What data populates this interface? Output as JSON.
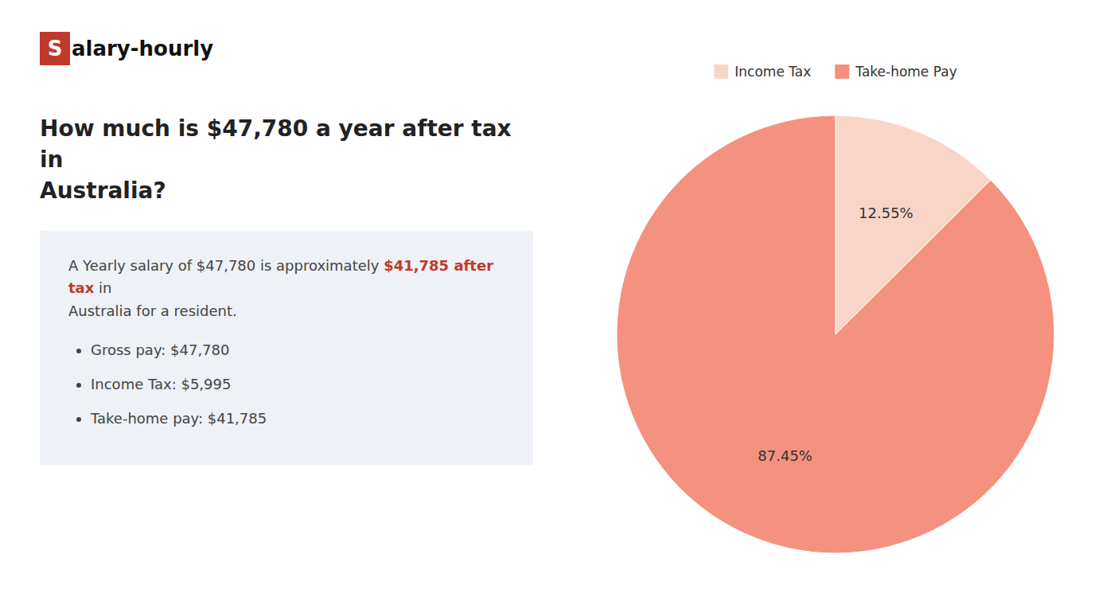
{
  "chart_data": {
    "type": "pie",
    "title": "How much is $47,780 a year after tax in\nAustralia?",
    "categories": [
      "Income Tax",
      "Take-home Pay"
    ],
    "values": [
      12.55,
      87.45
    ],
    "value_labels": [
      "12.55%",
      "87.45%"
    ],
    "colors": [
      "#f9d5c8",
      "#f4917f"
    ],
    "data_labels": true,
    "legend": "upper center",
    "annotations": [
      {
        "text": "S",
        "color": "#c0392b"
      },
      {
        "text": "alary-hourly"
      },
      {
        "text": "A Yearly salary of $47,780 is approximately "
      },
      {
        "text": "$41,785 after tax",
        "color": "#c0392b"
      },
      {
        "text": " in"
      },
      {
        "text": "Australia for a resident."
      },
      {
        "text": "Gross pay: $47,780"
      },
      {
        "text": "Income Tax: $5,995"
      },
      {
        "text": "Take-home pay: $41,785"
      }
    ]
  }
}
